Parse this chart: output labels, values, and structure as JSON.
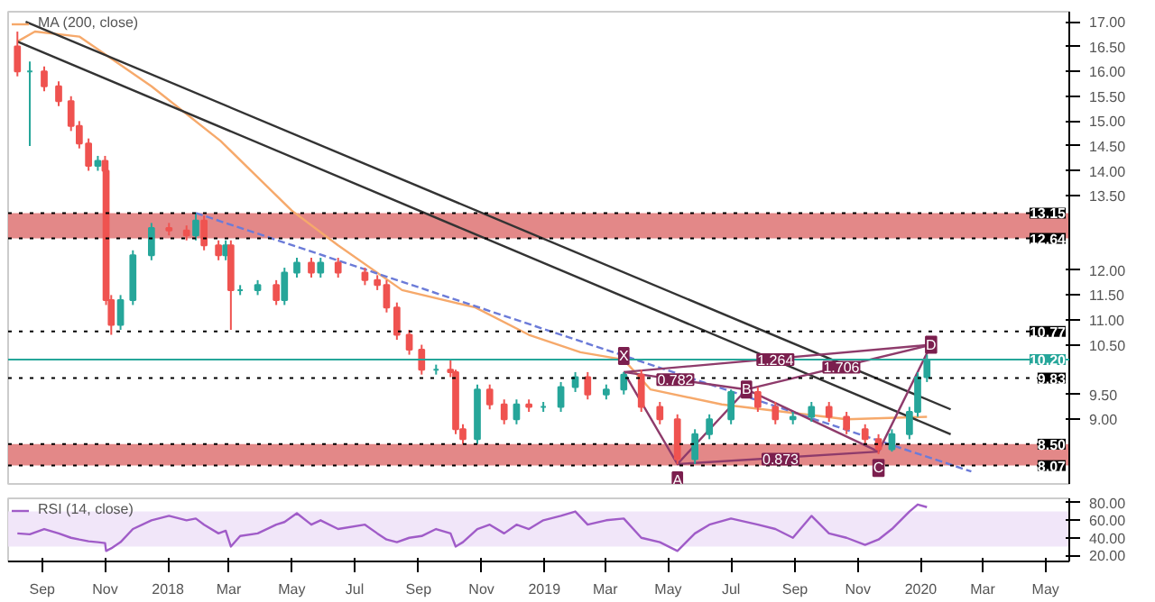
{
  "chart_data": [
    {
      "type": "candlestick",
      "x": [
        "2017-08-08",
        "2017-08-20",
        "2017-09-03",
        "2017-09-17",
        "2017-09-29",
        "2017-10-07",
        "2017-10-16",
        "2017-10-25",
        "2017-11-01",
        "2017-11-02",
        "2017-11-07",
        "2017-11-16",
        "2017-11-28",
        "2017-12-16",
        "2018-01-02",
        "2018-01-19",
        "2018-01-28",
        "2018-02-05",
        "2018-02-19",
        "2018-02-26",
        "2018-03-03",
        "2018-03-12",
        "2018-03-29",
        "2018-04-16",
        "2018-04-24",
        "2018-05-06",
        "2018-05-20",
        "2018-05-29",
        "2018-06-15",
        "2018-07-11",
        "2018-07-23",
        "2018-08-01",
        "2018-08-11",
        "2018-08-23",
        "2018-09-04",
        "2018-09-18",
        "2018-10-02",
        "2018-10-07",
        "2018-10-14",
        "2018-10-28",
        "2018-11-09",
        "2018-11-23",
        "2018-12-05",
        "2018-12-17",
        "2018-12-31",
        "2019-01-17",
        "2019-01-31",
        "2019-02-12",
        "2019-03-02",
        "2019-03-19",
        "2019-04-05",
        "2019-04-23",
        "2019-05-10",
        "2019-05-27",
        "2019-06-10",
        "2019-07-01",
        "2019-07-27",
        "2019-08-13",
        "2019-08-30",
        "2019-09-17",
        "2019-10-04",
        "2019-10-21",
        "2019-11-08",
        "2019-11-21",
        "2019-12-04",
        "2019-12-21",
        "2019-12-29",
        "2020-01-07"
      ],
      "ohlc": [
        [
          16.5,
          16.8,
          15.9,
          16.0
        ],
        [
          16.0,
          16.2,
          14.5,
          16.0
        ],
        [
          16.0,
          16.1,
          15.6,
          15.7
        ],
        [
          15.7,
          15.8,
          15.3,
          15.4
        ],
        [
          15.4,
          15.5,
          14.8,
          14.9
        ],
        [
          14.9,
          15.0,
          14.45,
          14.55
        ],
        [
          14.55,
          14.65,
          14.0,
          14.1
        ],
        [
          14.1,
          14.3,
          14.0,
          14.2
        ],
        [
          14.2,
          14.3,
          13.9,
          14.0
        ],
        [
          14.0,
          14.0,
          11.3,
          11.4
        ],
        [
          11.4,
          11.5,
          10.7,
          10.9
        ],
        [
          10.9,
          11.5,
          10.8,
          11.4
        ],
        [
          11.4,
          12.4,
          11.3,
          12.3
        ],
        [
          12.3,
          12.95,
          12.2,
          12.85
        ],
        [
          12.85,
          12.95,
          12.7,
          12.8
        ],
        [
          12.8,
          12.9,
          12.6,
          12.7
        ],
        [
          12.7,
          13.15,
          12.6,
          13.0
        ],
        [
          13.0,
          13.1,
          12.4,
          12.5
        ],
        [
          12.5,
          12.6,
          12.2,
          12.3
        ],
        [
          12.3,
          12.6,
          12.2,
          12.5
        ],
        [
          12.5,
          12.6,
          10.8,
          11.6
        ],
        [
          11.6,
          11.7,
          11.5,
          11.6
        ],
        [
          11.6,
          11.8,
          11.5,
          11.7
        ],
        [
          11.7,
          11.8,
          11.3,
          11.4
        ],
        [
          11.4,
          12.05,
          11.3,
          11.95
        ],
        [
          11.95,
          12.25,
          11.85,
          12.15
        ],
        [
          12.15,
          12.25,
          11.85,
          11.95
        ],
        [
          11.95,
          12.25,
          11.85,
          12.15
        ],
        [
          12.15,
          12.25,
          11.85,
          11.95
        ],
        [
          11.95,
          12.05,
          11.7,
          11.8
        ],
        [
          11.8,
          11.9,
          11.6,
          11.7
        ],
        [
          11.7,
          11.8,
          11.15,
          11.25
        ],
        [
          11.25,
          11.35,
          10.6,
          10.7
        ],
        [
          10.7,
          10.8,
          10.3,
          10.4
        ],
        [
          10.4,
          10.5,
          9.9,
          10.0
        ],
        [
          10.0,
          10.1,
          9.9,
          10.0
        ],
        [
          10.0,
          10.2,
          9.85,
          9.95
        ],
        [
          9.95,
          10.0,
          8.7,
          8.8
        ],
        [
          8.8,
          8.9,
          8.5,
          8.6
        ],
        [
          8.6,
          9.7,
          8.5,
          9.6
        ],
        [
          9.6,
          9.7,
          9.2,
          9.3
        ],
        [
          9.3,
          9.4,
          8.9,
          9.0
        ],
        [
          9.0,
          9.4,
          8.9,
          9.3
        ],
        [
          9.3,
          9.4,
          9.15,
          9.25
        ],
        [
          9.25,
          9.35,
          9.15,
          9.25
        ],
        [
          9.25,
          9.75,
          9.15,
          9.65
        ],
        [
          9.65,
          9.95,
          9.55,
          9.85
        ],
        [
          9.85,
          9.95,
          9.4,
          9.5
        ],
        [
          9.5,
          9.7,
          9.4,
          9.6
        ],
        [
          9.6,
          9.95,
          9.5,
          9.9
        ],
        [
          9.9,
          10.0,
          9.15,
          9.25
        ],
        [
          9.25,
          9.35,
          8.9,
          9.0
        ],
        [
          9.0,
          9.1,
          8.1,
          8.2
        ],
        [
          8.2,
          8.8,
          8.1,
          8.7
        ],
        [
          8.7,
          9.1,
          8.6,
          9.0
        ],
        [
          9.0,
          9.6,
          8.9,
          9.55
        ],
        [
          9.55,
          9.65,
          9.15,
          9.25
        ],
        [
          9.25,
          9.35,
          8.9,
          9.0
        ],
        [
          9.0,
          9.15,
          8.9,
          9.05
        ],
        [
          9.05,
          9.35,
          8.95,
          9.25
        ],
        [
          9.25,
          9.35,
          8.95,
          9.05
        ],
        [
          9.05,
          9.15,
          8.7,
          8.8
        ],
        [
          8.8,
          8.9,
          8.5,
          8.6
        ],
        [
          8.6,
          8.7,
          8.3,
          8.4
        ],
        [
          8.4,
          8.8,
          8.35,
          8.7
        ],
        [
          8.7,
          9.25,
          8.6,
          9.15
        ],
        [
          9.15,
          9.95,
          9.05,
          9.85
        ],
        [
          9.85,
          10.3,
          9.75,
          10.2
        ]
      ],
      "series": [
        {
          "name": "MA (200, close)",
          "type": "line",
          "color": "#f6a96b",
          "line_style": "solid",
          "x": [
            "2017-08-08",
            "2017-08-25",
            "2017-10-07",
            "2017-12-16",
            "2018-02-21",
            "2018-05-01",
            "2018-06-15",
            "2018-08-16",
            "2018-10-26",
            "2018-12-17",
            "2019-02-05",
            "2019-03-19",
            "2019-04-14",
            "2019-06-22",
            "2019-10-21",
            "2020-01-07"
          ],
          "values": [
            16.6,
            16.8,
            16.7,
            15.7,
            14.6,
            13.2,
            12.5,
            11.6,
            11.25,
            10.7,
            10.35,
            10.2,
            9.6,
            9.3,
            9.0,
            9.05
          ]
        },
        {
          "type": "line",
          "color": "#333333",
          "line_style": "solid",
          "x": [
            "2017-08-16",
            "2020-01-30"
          ],
          "values": [
            17.0,
            9.2
          ]
        },
        {
          "type": "line",
          "color": "#333333",
          "line_style": "solid",
          "x": [
            "2017-08-08",
            "2020-01-30"
          ],
          "values": [
            16.6,
            8.7
          ]
        },
        {
          "type": "line",
          "color": "#6b7bd8",
          "line_style": "dashed",
          "x": [
            "2018-01-28",
            "2020-02-19"
          ],
          "values": [
            13.15,
            7.95
          ]
        },
        {
          "type": "line",
          "color": "#8e3b6b",
          "line_style": "solid",
          "x": [
            "2019-03-19",
            "2019-05-10",
            "2019-07-16",
            "2019-11-21",
            "2020-01-11"
          ],
          "values": [
            9.95,
            8.1,
            9.6,
            8.35,
            10.5
          ]
        },
        {
          "type": "line",
          "color": "#8e3b6b",
          "line_style": "solid",
          "x": [
            "2019-03-19",
            "2019-07-16"
          ],
          "values": [
            9.95,
            9.6
          ]
        },
        {
          "type": "line",
          "color": "#8e3b6b",
          "line_style": "solid",
          "x": [
            "2019-07-16",
            "2020-01-11"
          ],
          "values": [
            9.6,
            10.5
          ]
        },
        {
          "type": "line",
          "color": "#8e3b6b",
          "line_style": "solid",
          "x": [
            "2019-03-19",
            "2020-01-11"
          ],
          "values": [
            9.95,
            10.5
          ]
        },
        {
          "type": "line",
          "color": "#8e3b6b",
          "line_style": "solid",
          "x": [
            "2019-05-10",
            "2019-11-21"
          ],
          "values": [
            8.1,
            8.35
          ]
        }
      ],
      "annotations": [
        {
          "text": "X",
          "x": "2019-03-19",
          "y": 9.95
        },
        {
          "text": "A",
          "x": "2019-05-10",
          "y": 8.1
        },
        {
          "text": "B",
          "x": "2019-07-16",
          "y": 9.6
        },
        {
          "text": "C",
          "x": "2019-11-21",
          "y": 8.35
        },
        {
          "text": "D",
          "x": "2020-01-11",
          "y": 10.5
        },
        {
          "text": "0.782",
          "x": "2019-05-08",
          "y": 9.8
        },
        {
          "text": "1.264",
          "x": "2019-08-13",
          "y": 10.2
        },
        {
          "text": "1.706",
          "x": "2019-10-16",
          "y": 10.05
        },
        {
          "text": "0.873",
          "x": "2019-08-18",
          "y": 8.2
        }
      ],
      "ref_lines": [
        {
          "axis": "y",
          "value": 13.15,
          "label": "13.15",
          "color": "#000000",
          "line_style": "dotted"
        },
        {
          "axis": "y",
          "value": 12.64,
          "label": "12.64",
          "color": "#000000",
          "line_style": "dotted"
        },
        {
          "axis": "y",
          "value": 10.77,
          "label": "10.77",
          "color": "#000000",
          "line_style": "dotted"
        },
        {
          "axis": "y",
          "value": 10.2,
          "label": "10.20",
          "color": "#26a69a",
          "line_style": "solid"
        },
        {
          "axis": "y",
          "value": 9.83,
          "label": "9.83",
          "color": "#000000",
          "line_style": "dotted"
        },
        {
          "axis": "y",
          "value": 8.5,
          "label": "8.50",
          "color": "#000000",
          "line_style": "dotted"
        },
        {
          "axis": "y",
          "value": 8.07,
          "label": "8.07",
          "color": "#000000",
          "line_style": "dotted"
        }
      ],
      "bands": [
        {
          "axis": "y",
          "from": 12.64,
          "to": 13.15,
          "color": "#e07b7b"
        },
        {
          "axis": "y",
          "from": 8.07,
          "to": 8.5,
          "color": "#e07b7b"
        }
      ],
      "xlim": [
        "2017-07-30",
        "2020-05-24"
      ],
      "ylim": [
        7.7,
        17.2
      ],
      "yticks": [
        {
          "value": 17,
          "label": "17.00"
        },
        {
          "value": 16.5,
          "label": "16.50"
        },
        {
          "value": 16,
          "label": "16.00"
        },
        {
          "value": 15.5,
          "label": "15.50"
        },
        {
          "value": 15,
          "label": "15.00"
        },
        {
          "value": 14.5,
          "label": "14.50"
        },
        {
          "value": 14,
          "label": "14.00"
        },
        {
          "value": 13.5,
          "label": "13.50"
        },
        {
          "value": 12,
          "label": "12.00"
        },
        {
          "value": 11.5,
          "label": "11.50"
        },
        {
          "value": 11,
          "label": "11.00"
        },
        {
          "value": 10.5,
          "label": "10.50"
        },
        {
          "value": 9.5,
          "label": "9.50"
        },
        {
          "value": 9,
          "label": "9.00"
        }
      ],
      "tick_labels": "y",
      "legend": "top left"
    },
    {
      "type": "line",
      "x": [
        "2017-08-08",
        "2017-08-20",
        "2017-09-03",
        "2017-09-17",
        "2017-09-29",
        "2017-10-07",
        "2017-10-16",
        "2017-10-25",
        "2017-11-01",
        "2017-11-02",
        "2017-11-07",
        "2017-11-16",
        "2017-11-28",
        "2017-12-16",
        "2018-01-02",
        "2018-01-19",
        "2018-01-28",
        "2018-02-05",
        "2018-02-19",
        "2018-02-26",
        "2018-03-03",
        "2018-03-12",
        "2018-03-29",
        "2018-04-16",
        "2018-04-24",
        "2018-05-06",
        "2018-05-20",
        "2018-05-29",
        "2018-06-15",
        "2018-07-11",
        "2018-07-23",
        "2018-08-01",
        "2018-08-11",
        "2018-08-23",
        "2018-09-04",
        "2018-09-18",
        "2018-10-02",
        "2018-10-07",
        "2018-10-14",
        "2018-10-28",
        "2018-11-09",
        "2018-11-23",
        "2018-12-05",
        "2018-12-17",
        "2018-12-31",
        "2019-01-17",
        "2019-01-31",
        "2019-02-12",
        "2019-03-02",
        "2019-03-19",
        "2019-04-05",
        "2019-04-23",
        "2019-05-10",
        "2019-05-27",
        "2019-06-10",
        "2019-07-01",
        "2019-07-27",
        "2019-08-13",
        "2019-08-30",
        "2019-09-17",
        "2019-10-04",
        "2019-10-21",
        "2019-11-08",
        "2019-11-21",
        "2019-12-04",
        "2019-12-21",
        "2019-12-29",
        "2020-01-07"
      ],
      "series": [
        {
          "name": "RSI (14, close)",
          "color": "#a05cc8",
          "values": [
            45,
            44,
            50,
            45,
            40,
            38,
            36,
            35,
            34,
            25,
            28,
            35,
            50,
            60,
            65,
            60,
            62,
            55,
            45,
            48,
            30,
            42,
            45,
            55,
            58,
            68,
            55,
            60,
            50,
            55,
            45,
            38,
            35,
            40,
            42,
            50,
            45,
            30,
            35,
            50,
            55,
            45,
            55,
            50,
            60,
            65,
            70,
            55,
            60,
            62,
            40,
            35,
            25,
            45,
            55,
            62,
            55,
            50,
            40,
            65,
            45,
            40,
            32,
            38,
            50,
            70,
            78,
            75
          ]
        }
      ],
      "bands": [
        {
          "axis": "y",
          "from": 30,
          "to": 70,
          "color": "#efe3f8"
        }
      ],
      "xlim": [
        "2017-07-30",
        "2020-05-24"
      ],
      "ylim": [
        13,
        85
      ],
      "yticks": [
        {
          "value": 80,
          "label": "80.00"
        },
        {
          "value": 60,
          "label": "60.00"
        },
        {
          "value": 40,
          "label": "40.00"
        },
        {
          "value": 20,
          "label": "20.00"
        }
      ],
      "xticks": [
        {
          "value": "2017-09-01",
          "label": "Sep"
        },
        {
          "value": "2017-11-01",
          "label": "Nov"
        },
        {
          "value": "2018-01-01",
          "label": "2018"
        },
        {
          "value": "2018-03-01",
          "label": "Mar"
        },
        {
          "value": "2018-05-01",
          "label": "May"
        },
        {
          "value": "2018-07-01",
          "label": "Jul"
        },
        {
          "value": "2018-09-01",
          "label": "Sep"
        },
        {
          "value": "2018-11-01",
          "label": "Nov"
        },
        {
          "value": "2019-01-01",
          "label": "2019"
        },
        {
          "value": "2019-03-01",
          "label": "Mar"
        },
        {
          "value": "2019-05-01",
          "label": "May"
        },
        {
          "value": "2019-07-01",
          "label": "Jul"
        },
        {
          "value": "2019-09-01",
          "label": "Sep"
        },
        {
          "value": "2019-11-01",
          "label": "Nov"
        },
        {
          "value": "2020-01-01",
          "label": "2020"
        },
        {
          "value": "2020-03-01",
          "label": "Mar"
        },
        {
          "value": "2020-05-01",
          "label": "May"
        }
      ],
      "legend": "top left"
    }
  ]
}
